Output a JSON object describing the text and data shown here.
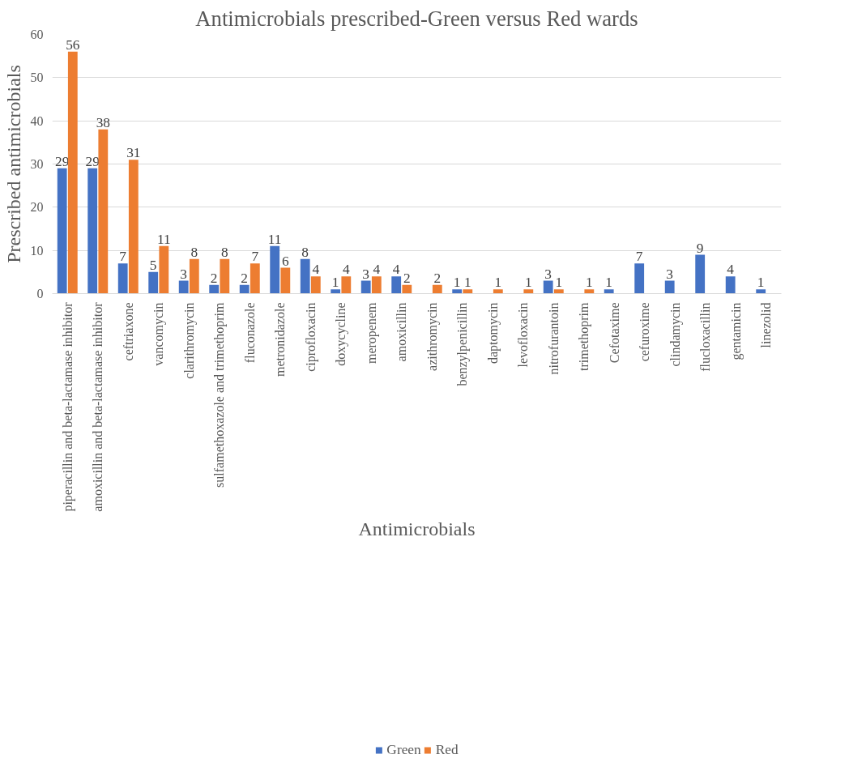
{
  "chart_data": {
    "type": "bar",
    "title": "Antimicrobials prescribed-Green versus Red wards",
    "xlabel": "Antimicrobials",
    "ylabel": "Prescribed antimicrobials",
    "categories": [
      "piperacillin and beta-lactamase inhibitor",
      "amoxicillin and beta-lactamase inhibitor",
      "ceftriaxone",
      "vancomycin",
      "clarithromycin",
      "sulfamethoxazole and trimethoprim",
      "fluconazole",
      "metronidazole",
      "ciprofloxacin",
      "doxycycline",
      "meropenem",
      "amoxicillin",
      "azithromycin",
      "benzylpenicillin",
      "daptomycin",
      "levofloxacin",
      "nitrofurantoin",
      "trimethoprim",
      "Cefotaxime",
      "cefuroxime",
      "clindamycin",
      "flucloxacillin",
      "gentamicin",
      "linezolid"
    ],
    "series": [
      {
        "name": "Green",
        "color": "#4472c4",
        "values": [
          29,
          29,
          7,
          5,
          3,
          2,
          2,
          11,
          8,
          1,
          3,
          4,
          null,
          1,
          null,
          null,
          3,
          null,
          1,
          7,
          3,
          9,
          4,
          1
        ]
      },
      {
        "name": "Red",
        "color": "#ed7d31",
        "values": [
          56,
          38,
          31,
          11,
          8,
          8,
          7,
          6,
          4,
          4,
          4,
          2,
          2,
          1,
          1,
          1,
          1,
          1,
          null,
          null,
          null,
          null,
          null,
          null
        ]
      }
    ],
    "ylim": [
      0,
      60
    ],
    "yticks": [
      0,
      10,
      20,
      30,
      40,
      50,
      60
    ],
    "grid": "y",
    "legend": "bottom",
    "data_labels": true
  }
}
